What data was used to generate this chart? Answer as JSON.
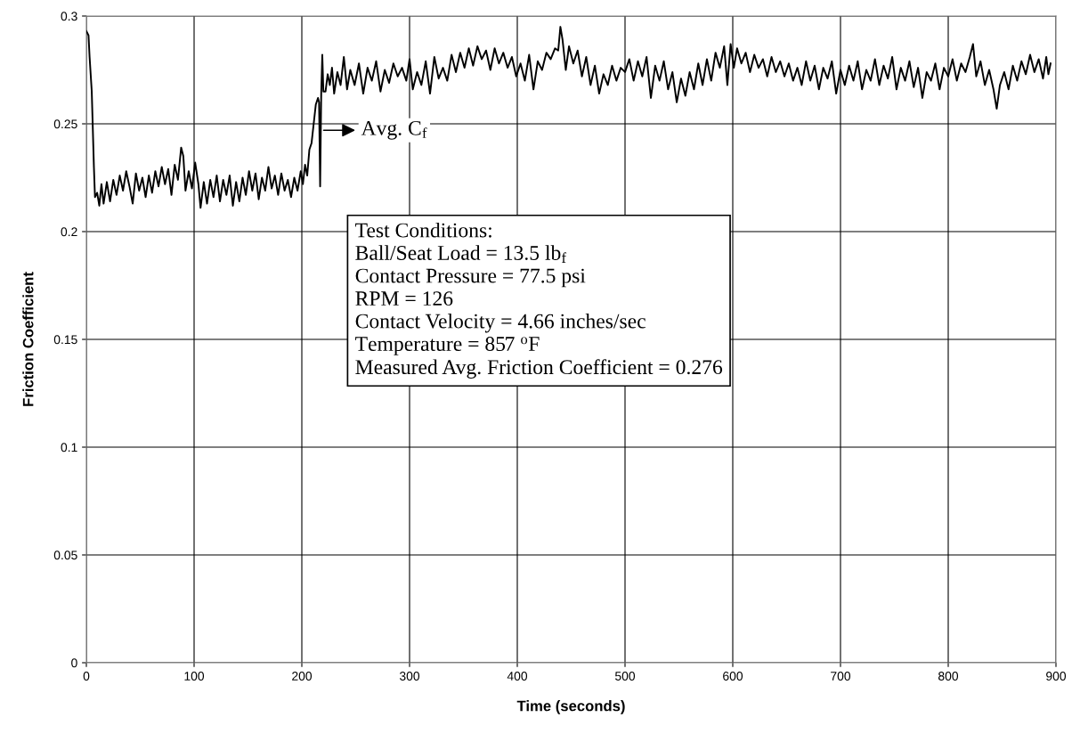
{
  "chart_data": {
    "type": "line",
    "xlabel": "Time (seconds)",
    "ylabel": "Friction Coefficient",
    "xlim": [
      0,
      900
    ],
    "xticks": [
      0,
      100,
      200,
      300,
      400,
      500,
      600,
      700,
      800,
      900
    ],
    "ylim": [
      0,
      0.3
    ],
    "yticks": [
      0,
      0.05,
      0.1,
      0.15,
      0.2,
      0.25,
      0.3
    ],
    "grid": true,
    "legend": false,
    "marker": "none",
    "line_style": "solid",
    "series": [
      {
        "color": "#000000",
        "x": [
          0,
          2,
          3,
          5,
          7,
          8,
          10,
          12,
          14,
          16,
          19,
          22,
          25,
          28,
          31,
          34,
          37,
          40,
          43,
          46,
          49,
          52,
          55,
          58,
          61,
          64,
          67,
          70,
          73,
          76,
          79,
          82,
          85,
          88,
          90,
          92,
          95,
          98,
          101,
          104,
          106,
          109,
          112,
          115,
          118,
          121,
          124,
          127,
          130,
          133,
          136,
          139,
          142,
          145,
          148,
          151,
          154,
          157,
          160,
          163,
          166,
          169,
          172,
          175,
          178,
          181,
          184,
          187,
          190,
          193,
          196,
          199,
          201,
          203,
          205,
          207,
          209,
          211,
          213,
          215,
          216,
          217,
          218,
          219,
          220,
          222,
          224,
          226,
          228,
          230,
          233,
          236,
          239,
          242,
          245,
          249,
          253,
          257,
          261,
          265,
          269,
          273,
          277,
          281,
          285,
          289,
          293,
          297,
          300,
          303,
          307,
          311,
          315,
          319,
          323,
          327,
          331,
          335,
          339,
          343,
          347,
          351,
          355,
          359,
          363,
          367,
          371,
          375,
          379,
          383,
          387,
          391,
          395,
          399,
          403,
          407,
          411,
          415,
          419,
          423,
          427,
          431,
          435,
          438,
          440,
          442,
          445,
          448,
          452,
          456,
          460,
          464,
          468,
          472,
          476,
          480,
          484,
          488,
          492,
          496,
          500,
          504,
          508,
          512,
          516,
          520,
          524,
          528,
          532,
          536,
          540,
          544,
          548,
          552,
          556,
          560,
          564,
          568,
          572,
          576,
          580,
          584,
          588,
          592,
          595,
          598,
          601,
          604,
          608,
          612,
          616,
          620,
          624,
          628,
          632,
          636,
          640,
          644,
          648,
          652,
          656,
          660,
          664,
          668,
          672,
          676,
          680,
          684,
          688,
          692,
          696,
          700,
          704,
          708,
          712,
          716,
          720,
          724,
          728,
          732,
          736,
          740,
          744,
          748,
          752,
          756,
          760,
          764,
          768,
          772,
          776,
          780,
          784,
          788,
          792,
          796,
          800,
          804,
          808,
          812,
          816,
          820,
          823,
          826,
          830,
          834,
          838,
          842,
          845,
          848,
          852,
          856,
          860,
          864,
          868,
          872,
          876,
          880,
          884,
          888,
          891,
          893,
          895
        ],
        "values": [
          0.293,
          0.291,
          0.281,
          0.265,
          0.23,
          0.216,
          0.218,
          0.212,
          0.222,
          0.213,
          0.223,
          0.214,
          0.224,
          0.217,
          0.226,
          0.219,
          0.228,
          0.221,
          0.213,
          0.227,
          0.219,
          0.225,
          0.216,
          0.226,
          0.218,
          0.228,
          0.221,
          0.23,
          0.222,
          0.229,
          0.217,
          0.231,
          0.224,
          0.239,
          0.235,
          0.219,
          0.228,
          0.22,
          0.232,
          0.222,
          0.211,
          0.223,
          0.213,
          0.224,
          0.216,
          0.226,
          0.214,
          0.224,
          0.217,
          0.226,
          0.212,
          0.223,
          0.214,
          0.225,
          0.217,
          0.228,
          0.219,
          0.227,
          0.215,
          0.225,
          0.219,
          0.23,
          0.22,
          0.226,
          0.217,
          0.227,
          0.219,
          0.224,
          0.216,
          0.225,
          0.219,
          0.228,
          0.222,
          0.231,
          0.226,
          0.238,
          0.241,
          0.25,
          0.259,
          0.262,
          0.26,
          0.221,
          0.264,
          0.282,
          0.265,
          0.265,
          0.273,
          0.268,
          0.276,
          0.264,
          0.274,
          0.268,
          0.281,
          0.266,
          0.275,
          0.268,
          0.278,
          0.264,
          0.276,
          0.27,
          0.279,
          0.265,
          0.275,
          0.269,
          0.278,
          0.272,
          0.276,
          0.27,
          0.28,
          0.266,
          0.274,
          0.268,
          0.279,
          0.264,
          0.281,
          0.271,
          0.276,
          0.27,
          0.282,
          0.274,
          0.283,
          0.276,
          0.285,
          0.277,
          0.286,
          0.28,
          0.284,
          0.275,
          0.285,
          0.278,
          0.283,
          0.276,
          0.281,
          0.272,
          0.278,
          0.27,
          0.282,
          0.266,
          0.279,
          0.275,
          0.283,
          0.28,
          0.285,
          0.284,
          0.295,
          0.289,
          0.275,
          0.286,
          0.278,
          0.284,
          0.272,
          0.281,
          0.268,
          0.277,
          0.264,
          0.273,
          0.268,
          0.277,
          0.27,
          0.276,
          0.274,
          0.28,
          0.27,
          0.279,
          0.272,
          0.281,
          0.262,
          0.277,
          0.27,
          0.279,
          0.266,
          0.274,
          0.26,
          0.271,
          0.263,
          0.274,
          0.266,
          0.278,
          0.268,
          0.28,
          0.27,
          0.283,
          0.276,
          0.286,
          0.268,
          0.287,
          0.276,
          0.285,
          0.278,
          0.283,
          0.274,
          0.282,
          0.276,
          0.28,
          0.272,
          0.281,
          0.274,
          0.279,
          0.272,
          0.278,
          0.27,
          0.276,
          0.268,
          0.279,
          0.27,
          0.277,
          0.266,
          0.276,
          0.271,
          0.279,
          0.264,
          0.275,
          0.268,
          0.277,
          0.27,
          0.279,
          0.266,
          0.275,
          0.27,
          0.28,
          0.268,
          0.277,
          0.271,
          0.281,
          0.266,
          0.276,
          0.27,
          0.279,
          0.267,
          0.276,
          0.262,
          0.274,
          0.27,
          0.278,
          0.266,
          0.276,
          0.272,
          0.28,
          0.27,
          0.278,
          0.274,
          0.281,
          0.287,
          0.272,
          0.279,
          0.268,
          0.275,
          0.266,
          0.257,
          0.268,
          0.274,
          0.266,
          0.277,
          0.27,
          0.279,
          0.273,
          0.282,
          0.274,
          0.28,
          0.271,
          0.281,
          0.273,
          0.278
        ]
      }
    ],
    "annotations": [
      {
        "text": "Avg. C$_{f}$",
        "x": 218,
        "y": 0.247
      },
      "Test Conditions:",
      "Ball/Seat Load = 13.5 lb$_{f}$",
      "Contact Pressure = 77.5 psi",
      "RPM = 126",
      "Contact Velocity = 4.66 inches/sec",
      "Temperature = 857 $^{o}$F",
      "Measured Avg. Friction Coefficient = 0.276"
    ]
  }
}
